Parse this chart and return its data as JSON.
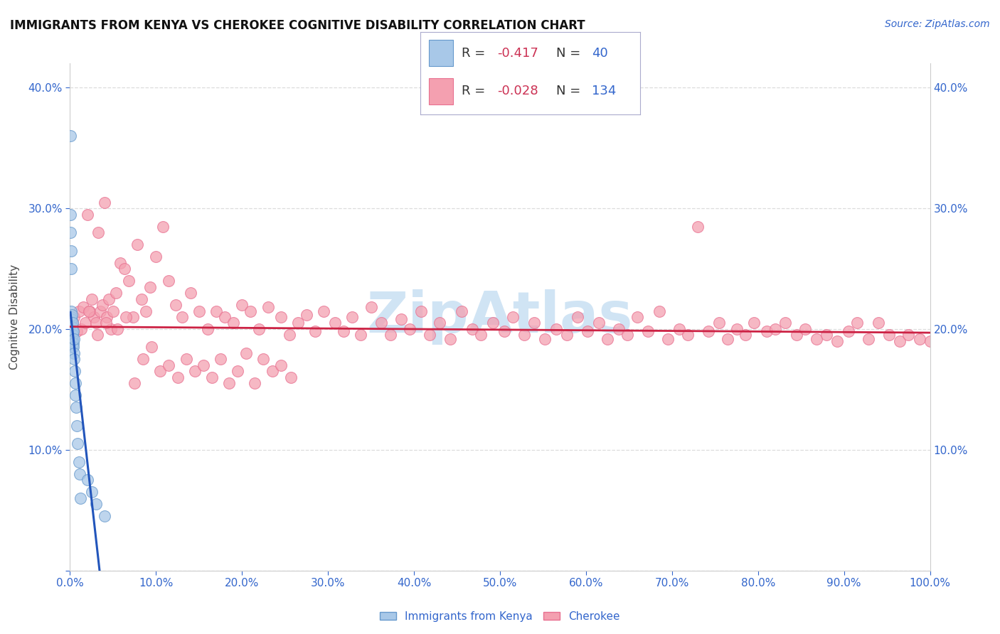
{
  "title": "IMMIGRANTS FROM KENYA VS CHEROKEE COGNITIVE DISABILITY CORRELATION CHART",
  "source": "Source: ZipAtlas.com",
  "xlabel_blue": "Immigrants from Kenya",
  "xlabel_pink": "Cherokee",
  "ylabel": "Cognitive Disability",
  "xlim": [
    0,
    1.0
  ],
  "ylim": [
    0,
    0.42
  ],
  "xtick_vals": [
    0.0,
    0.1,
    0.2,
    0.3,
    0.4,
    0.5,
    0.6,
    0.7,
    0.8,
    0.9,
    1.0
  ],
  "ytick_vals": [
    0.0,
    0.1,
    0.2,
    0.3,
    0.4
  ],
  "xticklabels": [
    "0.0%",
    "10.0%",
    "20.0%",
    "30.0%",
    "40.0%",
    "50.0%",
    "60.0%",
    "70.0%",
    "80.0%",
    "90.0%",
    "100.0%"
  ],
  "yticklabels": [
    "",
    "10.0%",
    "20.0%",
    "30.0%",
    "40.0%"
  ],
  "blue_R": -0.417,
  "blue_N": 40,
  "pink_R": -0.028,
  "pink_N": 134,
  "blue_color": "#A8C8E8",
  "pink_color": "#F4A0B0",
  "blue_edge_color": "#6699CC",
  "pink_edge_color": "#E87090",
  "trend_blue_color": "#2255BB",
  "trend_pink_color": "#CC2244",
  "legend_R_color": "#CC3355",
  "legend_N_color": "#3366CC",
  "watermark_color": "#D0E4F4",
  "blue_x": [
    0.0005,
    0.0007,
    0.0008,
    0.001,
    0.001,
    0.0012,
    0.0012,
    0.0015,
    0.0015,
    0.0018,
    0.002,
    0.0022,
    0.0023,
    0.0025,
    0.0025,
    0.0027,
    0.0028,
    0.003,
    0.003,
    0.0032,
    0.0033,
    0.0035,
    0.0038,
    0.004,
    0.0043,
    0.0045,
    0.005,
    0.0055,
    0.006,
    0.0065,
    0.007,
    0.008,
    0.009,
    0.01,
    0.011,
    0.012,
    0.02,
    0.025,
    0.03,
    0.04
  ],
  "blue_y": [
    0.36,
    0.295,
    0.28,
    0.265,
    0.215,
    0.25,
    0.21,
    0.205,
    0.208,
    0.212,
    0.2,
    0.198,
    0.195,
    0.202,
    0.196,
    0.19,
    0.185,
    0.198,
    0.192,
    0.205,
    0.195,
    0.188,
    0.198,
    0.185,
    0.18,
    0.192,
    0.175,
    0.165,
    0.155,
    0.145,
    0.135,
    0.12,
    0.105,
    0.09,
    0.08,
    0.06,
    0.075,
    0.065,
    0.055,
    0.045
  ],
  "pink_x": [
    0.003,
    0.005,
    0.008,
    0.01,
    0.013,
    0.015,
    0.018,
    0.02,
    0.023,
    0.025,
    0.028,
    0.03,
    0.033,
    0.035,
    0.038,
    0.04,
    0.043,
    0.045,
    0.048,
    0.05,
    0.053,
    0.058,
    0.063,
    0.068,
    0.073,
    0.078,
    0.083,
    0.088,
    0.093,
    0.1,
    0.108,
    0.115,
    0.123,
    0.13,
    0.14,
    0.15,
    0.16,
    0.17,
    0.18,
    0.19,
    0.2,
    0.21,
    0.22,
    0.23,
    0.245,
    0.255,
    0.265,
    0.275,
    0.285,
    0.295,
    0.308,
    0.318,
    0.328,
    0.338,
    0.35,
    0.362,
    0.373,
    0.385,
    0.395,
    0.408,
    0.418,
    0.43,
    0.442,
    0.455,
    0.468,
    0.478,
    0.492,
    0.505,
    0.515,
    0.528,
    0.54,
    0.552,
    0.565,
    0.578,
    0.59,
    0.602,
    0.615,
    0.625,
    0.638,
    0.648,
    0.66,
    0.672,
    0.685,
    0.695,
    0.708,
    0.718,
    0.73,
    0.742,
    0.755,
    0.765,
    0.775,
    0.785,
    0.795,
    0.81,
    0.82,
    0.832,
    0.845,
    0.855,
    0.868,
    0.88,
    0.892,
    0.905,
    0.915,
    0.928,
    0.94,
    0.952,
    0.965,
    0.975,
    0.988,
    1.0,
    0.022,
    0.032,
    0.042,
    0.055,
    0.065,
    0.075,
    0.085,
    0.095,
    0.105,
    0.115,
    0.125,
    0.135,
    0.145,
    0.155,
    0.165,
    0.175,
    0.185,
    0.195,
    0.205,
    0.215,
    0.225,
    0.235,
    0.245,
    0.257
  ],
  "pink_y": [
    0.205,
    0.21,
    0.198,
    0.215,
    0.2,
    0.218,
    0.205,
    0.295,
    0.215,
    0.225,
    0.21,
    0.205,
    0.28,
    0.215,
    0.22,
    0.305,
    0.21,
    0.225,
    0.2,
    0.215,
    0.23,
    0.255,
    0.25,
    0.24,
    0.21,
    0.27,
    0.225,
    0.215,
    0.235,
    0.26,
    0.285,
    0.24,
    0.22,
    0.21,
    0.23,
    0.215,
    0.2,
    0.215,
    0.21,
    0.205,
    0.22,
    0.215,
    0.2,
    0.218,
    0.21,
    0.195,
    0.205,
    0.212,
    0.198,
    0.215,
    0.205,
    0.198,
    0.21,
    0.195,
    0.218,
    0.205,
    0.195,
    0.208,
    0.2,
    0.215,
    0.195,
    0.205,
    0.192,
    0.215,
    0.2,
    0.195,
    0.205,
    0.198,
    0.21,
    0.195,
    0.205,
    0.192,
    0.2,
    0.195,
    0.21,
    0.198,
    0.205,
    0.192,
    0.2,
    0.195,
    0.21,
    0.198,
    0.215,
    0.192,
    0.2,
    0.195,
    0.285,
    0.198,
    0.205,
    0.192,
    0.2,
    0.195,
    0.205,
    0.198,
    0.2,
    0.205,
    0.195,
    0.2,
    0.192,
    0.195,
    0.19,
    0.198,
    0.205,
    0.192,
    0.205,
    0.195,
    0.19,
    0.195,
    0.192,
    0.19,
    0.215,
    0.195,
    0.205,
    0.2,
    0.21,
    0.155,
    0.175,
    0.185,
    0.165,
    0.17,
    0.16,
    0.175,
    0.165,
    0.17,
    0.16,
    0.175,
    0.155,
    0.165,
    0.18,
    0.155,
    0.175,
    0.165,
    0.17,
    0.16
  ],
  "blue_trend_x_start": 0.0005,
  "blue_trend_x_solid_end": 0.04,
  "blue_trend_x_dashed_end": 0.55,
  "pink_trend_x_start": 0.0,
  "pink_trend_x_end": 1.0,
  "pink_trend_y_start": 0.202,
  "pink_trend_y_end": 0.197
}
